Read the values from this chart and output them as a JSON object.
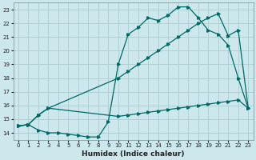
{
  "xlabel": "Humidex (Indice chaleur)",
  "bg_color": "#cce8ec",
  "grid_color": "#b0d0d4",
  "line_color": "#006868",
  "xlim": [
    -0.5,
    23.5
  ],
  "ylim": [
    13.5,
    23.5
  ],
  "yticks": [
    14,
    15,
    16,
    17,
    18,
    19,
    20,
    21,
    22,
    23
  ],
  "xticks": [
    0,
    1,
    2,
    3,
    4,
    5,
    6,
    7,
    8,
    9,
    10,
    11,
    12,
    13,
    14,
    15,
    16,
    17,
    18,
    19,
    20,
    21,
    22,
    23
  ],
  "curve1_x": [
    0,
    1,
    2,
    3,
    4,
    5,
    6,
    7,
    8,
    9,
    10,
    11,
    12,
    13,
    14,
    15,
    16,
    17,
    18,
    19,
    20,
    21,
    22,
    23
  ],
  "curve1_y": [
    14.5,
    14.6,
    14.2,
    14.0,
    14.0,
    13.9,
    13.8,
    13.7,
    13.7,
    14.8,
    19.0,
    21.2,
    21.7,
    22.4,
    22.2,
    22.6,
    23.2,
    23.2,
    22.4,
    21.5,
    21.2,
    20.4,
    18.0,
    15.8
  ],
  "curve2_x": [
    0,
    1,
    2,
    3,
    10,
    11,
    12,
    13,
    14,
    15,
    16,
    17,
    18,
    19,
    20,
    21,
    22,
    23
  ],
  "curve2_y": [
    14.5,
    14.6,
    15.3,
    15.8,
    18.0,
    18.5,
    19.0,
    19.5,
    20.0,
    20.5,
    21.0,
    21.5,
    22.0,
    22.4,
    22.7,
    21.1,
    21.5,
    15.8
  ],
  "curve3_x": [
    0,
    1,
    2,
    3,
    10,
    11,
    12,
    13,
    14,
    15,
    16,
    17,
    18,
    19,
    20,
    21,
    22,
    23
  ],
  "curve3_y": [
    14.5,
    14.6,
    15.3,
    15.8,
    15.2,
    15.3,
    15.4,
    15.5,
    15.6,
    15.7,
    15.8,
    15.9,
    16.0,
    16.1,
    16.2,
    16.3,
    16.4,
    15.8
  ]
}
